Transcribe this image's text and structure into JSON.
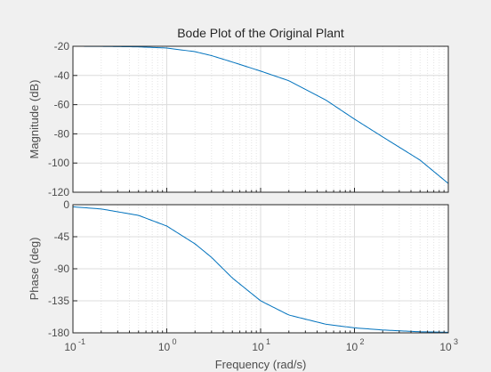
{
  "chart_data": {
    "type": "line",
    "title": "Bode Plot of the Original Plant",
    "xlabel": "Frequency  (rad/s)",
    "x_scale": "log",
    "xlim": [
      0.1,
      1000
    ],
    "x_ticks": [
      0.1,
      1,
      10,
      100,
      1000
    ],
    "x_tick_labels": [
      {
        "base": "10",
        "exp": "-1"
      },
      {
        "base": "10",
        "exp": "0"
      },
      {
        "base": "10",
        "exp": "1"
      },
      {
        "base": "10",
        "exp": "2"
      },
      {
        "base": "10",
        "exp": "3"
      }
    ],
    "grid": true,
    "line_color": "#0072bd",
    "panels": [
      {
        "name": "magnitude",
        "ylabel": "Magnitude (dB)",
        "ylim": [
          -120,
          -20
        ],
        "y_ticks": [
          -20,
          -40,
          -60,
          -80,
          -100,
          -120
        ],
        "x": [
          0.1,
          0.2,
          0.5,
          1,
          2,
          3,
          5,
          10,
          20,
          50,
          100,
          200,
          500,
          1000
        ],
        "y": [
          -20.0,
          -20.1,
          -20.4,
          -21.2,
          -23.7,
          -26.4,
          -30.8,
          -37.0,
          -43.6,
          -57.0,
          -69.9,
          -82.1,
          -98.0,
          -114.0
        ]
      },
      {
        "name": "phase",
        "ylabel": "Phase (deg)",
        "ylim": [
          -180,
          0
        ],
        "y_ticks": [
          0,
          -45,
          -90,
          -135,
          -180
        ],
        "x": [
          0.1,
          0.2,
          0.5,
          1,
          2,
          3,
          5,
          10,
          20,
          50,
          100,
          200,
          500,
          1000
        ],
        "y": [
          -3.0,
          -6.0,
          -15.0,
          -30.0,
          -55.0,
          -74.0,
          -103.0,
          -135.0,
          -155.0,
          -168.0,
          -173.0,
          -176.0,
          -178.5,
          -179.2
        ]
      }
    ]
  }
}
